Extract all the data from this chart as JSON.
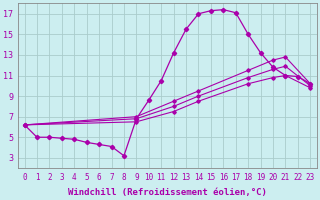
{
  "xlabel": "Windchill (Refroidissement éolien,°C)",
  "bg_color": "#cceef0",
  "grid_color": "#aacccc",
  "line_color": "#aa00aa",
  "xlim": [
    -0.5,
    23.5
  ],
  "ylim": [
    2.0,
    18.0
  ],
  "xticks": [
    0,
    1,
    2,
    3,
    4,
    5,
    6,
    7,
    8,
    9,
    10,
    11,
    12,
    13,
    14,
    15,
    16,
    17,
    18,
    19,
    20,
    21,
    22,
    23
  ],
  "yticks": [
    3,
    5,
    7,
    9,
    11,
    13,
    15,
    17
  ],
  "main_x": [
    0,
    1,
    2,
    3,
    4,
    5,
    6,
    7,
    8,
    9,
    10,
    11,
    12,
    13,
    14,
    15,
    16,
    17,
    18,
    19,
    20,
    21,
    22,
    23
  ],
  "main_y": [
    6.2,
    5.0,
    5.0,
    4.9,
    4.8,
    4.5,
    4.3,
    4.1,
    3.2,
    6.8,
    8.6,
    10.5,
    13.2,
    15.5,
    17.0,
    17.3,
    17.4,
    17.1,
    15.0,
    13.2,
    11.8,
    11.0,
    10.9,
    10.2
  ],
  "line_top_x": [
    0,
    9,
    12,
    14,
    18,
    20,
    21,
    23
  ],
  "line_top_y": [
    6.2,
    7.0,
    8.5,
    9.5,
    11.5,
    12.5,
    12.8,
    10.2
  ],
  "line_mid_x": [
    0,
    9,
    12,
    14,
    18,
    20,
    21,
    23
  ],
  "line_mid_y": [
    6.2,
    6.8,
    8.0,
    9.0,
    10.8,
    11.6,
    11.9,
    10.0
  ],
  "line_bot_x": [
    0,
    9,
    12,
    14,
    18,
    20,
    21,
    23
  ],
  "line_bot_y": [
    6.2,
    6.5,
    7.5,
    8.5,
    10.2,
    10.8,
    11.0,
    9.8
  ],
  "font_size_label": 6.5,
  "font_size_tick": 5.5
}
